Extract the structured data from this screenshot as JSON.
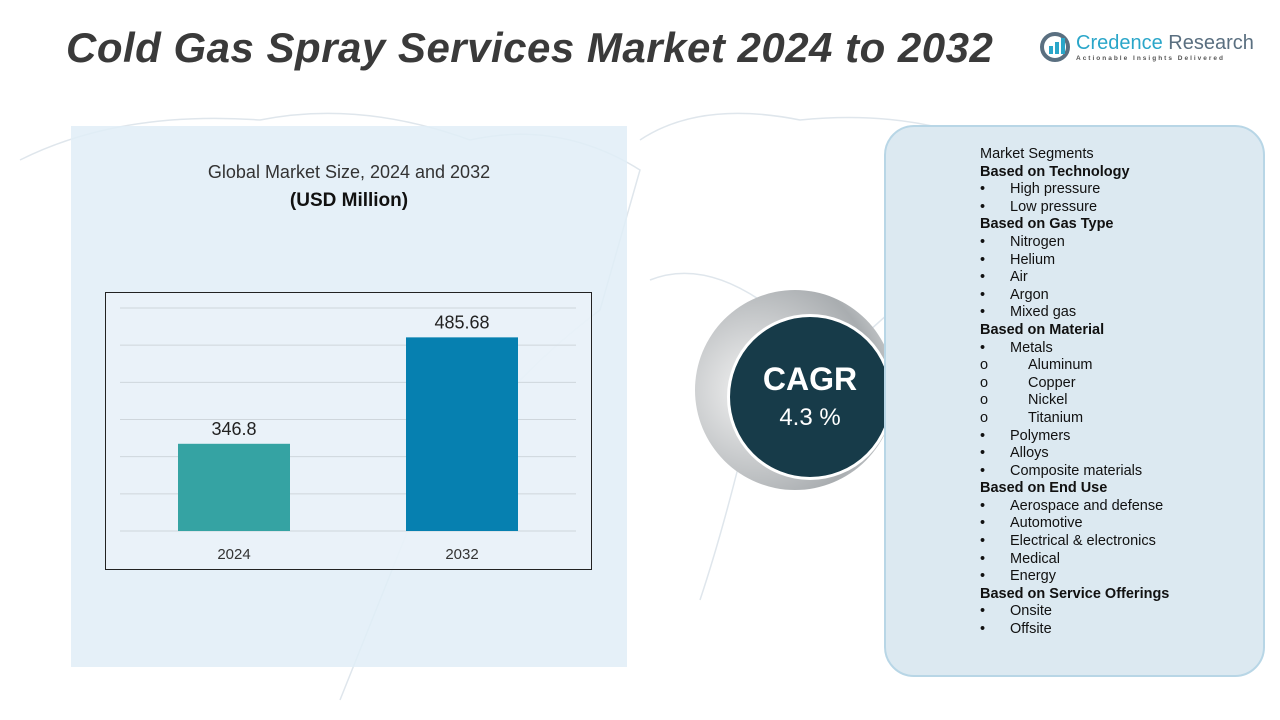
{
  "title": "Cold Gas Spray Services Market 2024 to 2032",
  "logo": {
    "name_a": "Credence",
    "name_b": " Research",
    "tagline": "Actionable Insights Delivered"
  },
  "chart_subtitle": "Global Market Size, 2024 and 2032",
  "chart_unit": "(USD Million)",
  "chart_data": {
    "type": "bar",
    "categories": [
      "2024",
      "2032"
    ],
    "values": [
      346.8,
      485.68
    ],
    "data_labels": [
      "346.8",
      "485.68"
    ],
    "colors": [
      "#35a3a3",
      "#0680b0"
    ],
    "ylim": [
      233,
      524
    ],
    "grid": true,
    "title": "",
    "xlabel": "",
    "ylabel": ""
  },
  "cagr": {
    "label": "CAGR",
    "value": "4.3 %"
  },
  "segments": {
    "heading": "Market Segments",
    "groups": [
      {
        "title": "Based on Technology",
        "items": [
          {
            "t": "High pressure"
          },
          {
            "t": "Low pressure"
          }
        ]
      },
      {
        "title": "Based on Gas Type",
        "items": [
          {
            "t": "Nitrogen"
          },
          {
            "t": "Helium"
          },
          {
            "t": "Air"
          },
          {
            "t": "Argon"
          },
          {
            "t": "Mixed gas"
          }
        ]
      },
      {
        "title": "Based on Material",
        "items": [
          {
            "t": "Metals"
          },
          {
            "t": "Aluminum",
            "sub": true
          },
          {
            "t": "Copper",
            "sub": true
          },
          {
            "t": "Nickel",
            "sub": true
          },
          {
            "t": "Titanium",
            "sub": true
          },
          {
            "t": "Polymers"
          },
          {
            "t": "Alloys"
          },
          {
            "t": "Composite materials"
          }
        ]
      },
      {
        "title": "Based on End Use",
        "items": [
          {
            "t": "Aerospace and defense"
          },
          {
            "t": "Automotive"
          },
          {
            "t": "Electrical & electronics"
          },
          {
            "t": "Medical"
          },
          {
            "t": "Energy"
          }
        ]
      },
      {
        "title": "Based on Service Offerings",
        "items": [
          {
            "t": "Onsite"
          },
          {
            "t": "Offsite"
          }
        ]
      }
    ]
  }
}
